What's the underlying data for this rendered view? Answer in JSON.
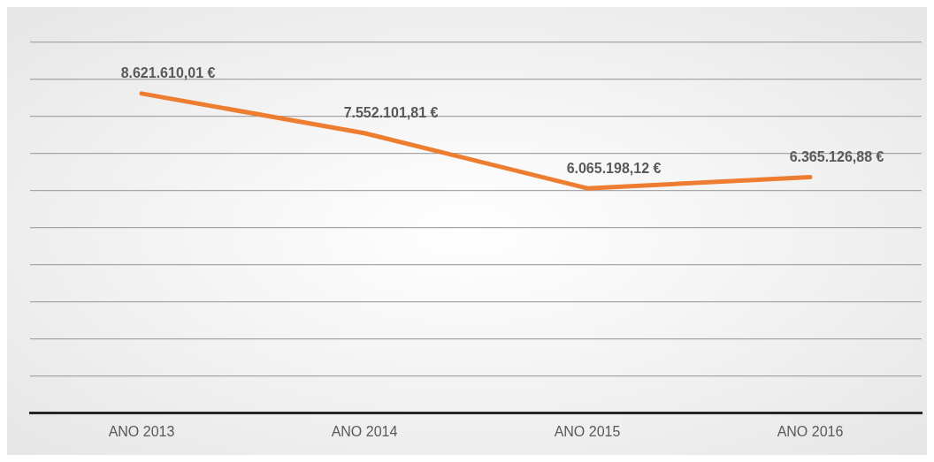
{
  "chart_data": {
    "type": "line",
    "categories": [
      "ANO 2013",
      "ANO 2014",
      "ANO 2015",
      "ANO 2016"
    ],
    "series": [
      {
        "color": "#ed7d31",
        "values": [
          8621610.01,
          7552101.81,
          6065198.12,
          6365126.88
        ],
        "value_labels": [
          "8.621.610,01 €",
          "7.552.101,81 €",
          "6.065.198,12 €",
          "6.365.126,88 €"
        ]
      }
    ],
    "ylim": [
      0,
      10000000
    ],
    "yticks": [
      {
        "value": 0,
        "label": null
      },
      {
        "value": 1000000,
        "label": null
      },
      {
        "value": 2000000,
        "label": null
      },
      {
        "value": 3000000,
        "label": null
      },
      {
        "value": 4000000,
        "label": null
      },
      {
        "value": 5000000,
        "label": null
      },
      {
        "value": 6000000,
        "label": null
      },
      {
        "value": 7000000,
        "label": null
      },
      {
        "value": 8000000,
        "label": null
      },
      {
        "value": 9000000,
        "label": null
      },
      {
        "value": 10000000,
        "label": null
      }
    ],
    "tick_labels": "x",
    "grid": "y",
    "legend": false,
    "marker": "none",
    "line_style": "solid"
  }
}
